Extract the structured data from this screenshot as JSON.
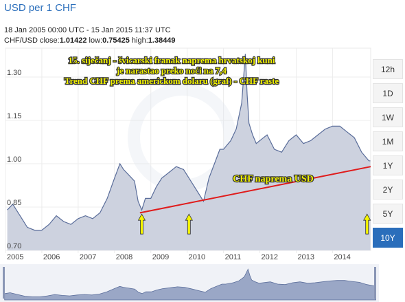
{
  "header": {
    "title": "USD per 1 CHF",
    "date_range": "18 Jan 2005 00:00 UTC - 15 Jan 2015 11:37 UTC",
    "pair": "CHF/USD",
    "close_label": "close:",
    "close_value": "1.01422",
    "low_label": "low:",
    "low_value": "0.75425",
    "high_label": "high:",
    "high_value": "1.38449"
  },
  "range_buttons": [
    {
      "label": "12h",
      "active": false
    },
    {
      "label": "1D",
      "active": false
    },
    {
      "label": "1W",
      "active": false
    },
    {
      "label": "1M",
      "active": false
    },
    {
      "label": "1Y",
      "active": false
    },
    {
      "label": "2Y",
      "active": false
    },
    {
      "label": "5Y",
      "active": false
    },
    {
      "label": "10Y",
      "active": true
    }
  ],
  "annotations": {
    "headline": [
      "15. siječanj - švicarski franak naprema hrvatskoj kuni",
      "je narastao preko noći na 7,4",
      "Trend CHF prema americkom dolaru (graf) - CHF raste"
    ],
    "trend_label": "CHF naprema USD"
  },
  "colors": {
    "line": "#5a6d9a",
    "area_fill": "#cdd2df",
    "trend_line": "#e01b1b",
    "annotation_text": "#f0f000",
    "annotation_outline": "#333333",
    "arrow": "#f5f500",
    "active_button": "#2a6ebb",
    "title": "#2a6ebb",
    "navigator_fill": "#9aa7c6"
  },
  "chart_data": {
    "type": "area",
    "x_unit": "year",
    "ylim": [
      0.7,
      1.4
    ],
    "yticks": [
      0.7,
      0.85,
      1.0,
      1.15,
      1.3
    ],
    "ytick_labels": [
      "0.70",
      "0.85",
      "1.00",
      "1.15",
      "1.30"
    ],
    "xlim": [
      2005.0,
      2015.05
    ],
    "xticks": [
      2005,
      2006,
      2007,
      2008,
      2009,
      2010,
      2011,
      2012,
      2013,
      2014
    ],
    "xtick_labels": [
      "2005",
      "2006",
      "2007",
      "2008",
      "2009",
      "2010",
      "2011",
      "2012",
      "2013",
      "2014"
    ],
    "grid": true,
    "series": [
      {
        "name": "",
        "x": [
          2005.05,
          2005.2,
          2005.4,
          2005.6,
          2005.8,
          2006.0,
          2006.2,
          2006.4,
          2006.6,
          2006.8,
          2007.0,
          2007.2,
          2007.4,
          2007.6,
          2007.8,
          2008.0,
          2008.15,
          2008.25,
          2008.4,
          2008.55,
          2008.65,
          2008.75,
          2008.85,
          2009.0,
          2009.15,
          2009.3,
          2009.5,
          2009.7,
          2009.9,
          2010.1,
          2010.3,
          2010.45,
          2010.6,
          2010.75,
          2010.9,
          2011.0,
          2011.2,
          2011.35,
          2011.5,
          2011.6,
          2011.65,
          2011.7,
          2011.8,
          2011.9,
          2012.0,
          2012.2,
          2012.4,
          2012.6,
          2012.8,
          2013.0,
          2013.2,
          2013.4,
          2013.6,
          2013.8,
          2014.0,
          2014.2,
          2014.4,
          2014.6,
          2014.8,
          2015.0,
          2015.04
        ],
        "y": [
          0.84,
          0.86,
          0.82,
          0.78,
          0.77,
          0.77,
          0.79,
          0.82,
          0.8,
          0.79,
          0.81,
          0.82,
          0.81,
          0.83,
          0.88,
          0.95,
          1.0,
          0.98,
          0.96,
          0.94,
          0.87,
          0.84,
          0.88,
          0.88,
          0.92,
          0.95,
          0.97,
          0.99,
          0.98,
          0.94,
          0.9,
          0.87,
          0.95,
          1.0,
          1.05,
          1.05,
          1.08,
          1.12,
          1.21,
          1.38,
          1.24,
          1.14,
          1.1,
          1.07,
          1.08,
          1.1,
          1.05,
          1.04,
          1.08,
          1.1,
          1.07,
          1.08,
          1.1,
          1.12,
          1.13,
          1.13,
          1.11,
          1.09,
          1.04,
          1.01,
          1.01
        ]
      }
    ],
    "trend_line": {
      "points": [
        [
          2008.7,
          0.83
        ],
        [
          2015.05,
          0.99
        ]
      ]
    },
    "arrows_at": [
      2008.75,
      2010.05,
      2014.95
    ]
  }
}
